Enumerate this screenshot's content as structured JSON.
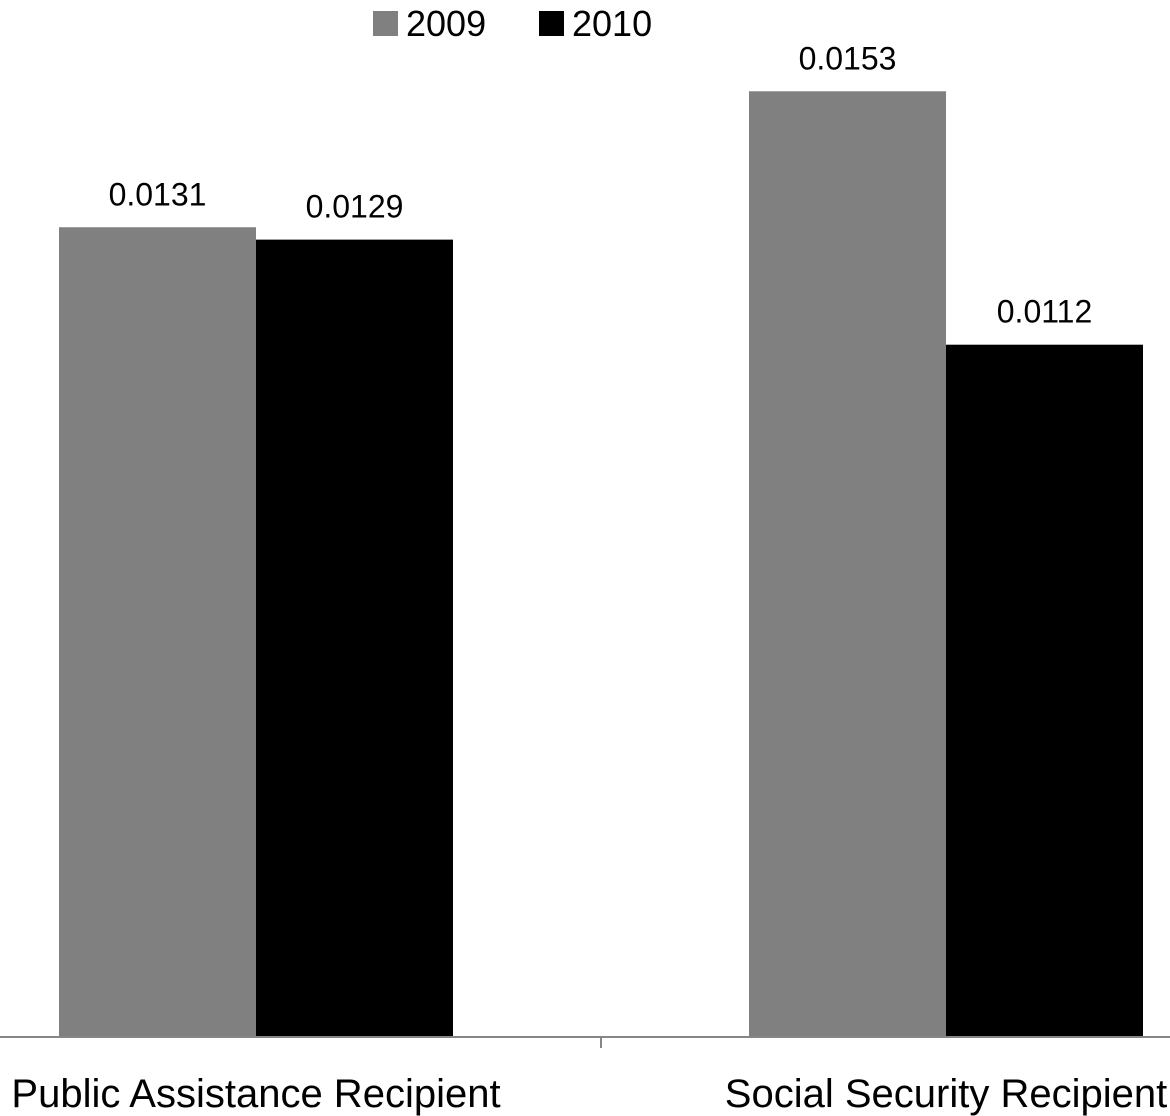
{
  "chart_data": {
    "type": "bar",
    "title": "",
    "xlabel": "",
    "ylabel": "",
    "categories": [
      "Public Assistance Recipient",
      "Social Security Recipient"
    ],
    "series": [
      {
        "name": "2009",
        "color": "#808080",
        "values": [
          0.0131,
          0.0153
        ]
      },
      {
        "name": "2010",
        "color": "#000000",
        "values": [
          0.0129,
          0.0112
        ]
      }
    ],
    "value_labels": [
      [
        "0.0131",
        "0.0153"
      ],
      [
        "0.0129",
        "0.0112"
      ]
    ],
    "ylim": [
      0,
      0.016
    ],
    "grid": false,
    "legend": "top-center"
  }
}
